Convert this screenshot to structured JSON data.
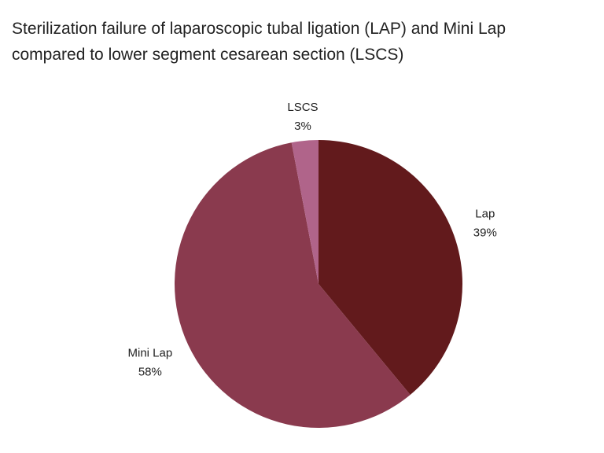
{
  "chart_data": {
    "type": "pie",
    "title": "Sterilization failure of laparoscopic tubal ligation (LAP) and Mini Lap compared to lower segment cesarean section (LSCS)",
    "categories": [
      "Lap",
      "Mini Lap",
      "LSCS"
    ],
    "values": [
      39,
      58,
      3
    ],
    "value_labels": [
      "39%",
      "58%",
      "3%"
    ],
    "colors": [
      "#621a1c",
      "#8a3a4e",
      "#b0648a"
    ]
  }
}
